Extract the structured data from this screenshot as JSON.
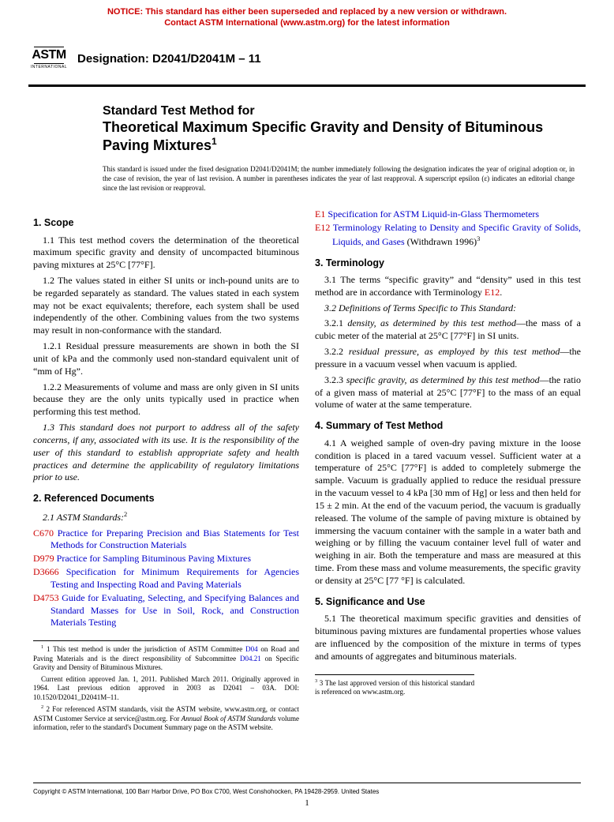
{
  "notice": {
    "line1": "NOTICE: This standard has either been superseded and replaced by a new version or withdrawn.",
    "line2": "Contact ASTM International (www.astm.org) for the latest information"
  },
  "logo": {
    "top": "",
    "main": "ASTM",
    "bottom": "INTERNATIONAL"
  },
  "designation": "Designation: D2041/D2041M – 11",
  "title": {
    "pre": "Standard Test Method for",
    "main": "Theoretical Maximum Specific Gravity and Density of Bituminous Paving Mixtures",
    "sup": "1"
  },
  "issued_note": "This standard is issued under the fixed designation D2041/D2041M; the number immediately following the designation indicates the year of original adoption or, in the case of revision, the year of last revision. A number in parentheses indicates the year of last reapproval. A superscript epsilon (ε) indicates an editorial change since the last revision or reapproval.",
  "s1": {
    "head": "1. Scope",
    "p1": "1.1 This test method covers the determination of the theoretical maximum specific gravity and density of uncompacted bituminous paving mixtures at 25°C [77°F].",
    "p2": "1.2 The values stated in either SI units or inch-pound units are to be regarded separately as standard. The values stated in each system may not be exact equivalents; therefore, each system shall be used independently of the other. Combining values from the two systems may result in non-conformance with the standard.",
    "p3": "1.2.1 Residual pressure measurements are shown in both the SI unit of kPa and the commonly used non-standard equivalent unit of “mm of Hg”.",
    "p4": "1.2.2 Measurements of volume and mass are only given in SI units because they are the only units typically used in practice when performing this test method.",
    "p5": "1.3 This standard does not purport to address all of the safety concerns, if any, associated with its use. It is the responsibility of the user of this standard to establish appropriate safety and health practices and determine the applicability of regulatory limitations prior to use."
  },
  "s2": {
    "head": "2. Referenced Documents",
    "sub": "2.1 ASTM Standards:",
    "sup": "2",
    "refs": [
      {
        "code": "C670",
        "text": "Practice for Preparing Precision and Bias Statements for Test Methods for Construction Materials"
      },
      {
        "code": "D979",
        "text": "Practice for Sampling Bituminous Paving Mixtures"
      },
      {
        "code": "D3666",
        "text": "Specification for Minimum Requirements for Agencies Testing and Inspecting Road and Paving Materials"
      },
      {
        "code": "D4753",
        "text": "Guide for Evaluating, Selecting, and Specifying Balances and Standard Masses for Use in Soil, Rock, and Construction Materials Testing"
      }
    ],
    "refs_r": [
      {
        "code": "E1",
        "text": "Specification for ASTM Liquid-in-Glass Thermometers",
        "tail": ""
      },
      {
        "code": "E12",
        "text": "Terminology Relating to Density and Specific Gravity of Solids, Liquids, and Gases",
        "tail": " (Withdrawn 1996)",
        "tailsup": "3"
      }
    ]
  },
  "s3": {
    "head": "3. Terminology",
    "p1a": "3.1 The terms “specific gravity” and “density” used in this test method are in accordance with Terminology ",
    "p1link": "E12",
    "p1b": ".",
    "p2": "3.2 Definitions of Terms Specific to This Standard:",
    "p3a": "3.2.1 ",
    "p3b": "density, as determined by this test method",
    "p3c": "—the mass of a cubic meter of the material at 25°C [77°F] in SI units.",
    "p4a": "3.2.2 ",
    "p4b": "residual pressure, as employed by this test method",
    "p4c": "—the pressure in a vacuum vessel when vacuum is applied.",
    "p5a": "3.2.3 ",
    "p5b": "specific gravity, as determined by this test method",
    "p5c": "—the ratio of a given mass of material at 25°C [77°F] to the mass of an equal volume of water at the same temperature."
  },
  "s4": {
    "head": "4. Summary of Test Method",
    "p1": "4.1 A weighed sample of oven-dry paving mixture in the loose condition is placed in a tared vacuum vessel. Sufficient water at a temperature of 25°C [77°F] is added to completely submerge the sample. Vacuum is gradually applied to reduce the residual pressure in the vacuum vessel to 4 kPa [30 mm of Hg] or less and then held for 15 ± 2 min. At the end of the vacuum period, the vacuum is gradually released. The volume of the sample of paving mixture is obtained by immersing the vacuum container with the sample in a water bath and weighing or by filling the vacuum container level full of water and weighing in air. Both the temperature and mass are measured at this time. From these mass and volume measurements, the specific gravity or density at 25°C [77 °F] is calculated."
  },
  "s5": {
    "head": "5. Significance and Use",
    "p1": "5.1 The theoretical maximum specific gravities and densities of bituminous paving mixtures are fundamental properties whose values are influenced by the composition of the mixture in terms of types and amounts of aggregates and bituminous materials."
  },
  "fn_left": {
    "f1a": "1 This test method is under the jurisdiction of ASTM Committee ",
    "f1l1": "D04",
    "f1b": " on Road and Paving Materials and is the direct responsibility of Subcommittee ",
    "f1l2": "D04.21",
    "f1c": " on Specific Gravity and Density of Bituminous Mixtures.",
    "f1d": "Current edition approved Jan. 1, 2011. Published March 2011. Originally approved in 1964. Last previous edition approved in 2003 as D2041 – 03A. DOI: 10.1520/D2041_D2041M–11.",
    "f2a": "2 For referenced ASTM standards, visit the ASTM website, www.astm.org, or contact ASTM Customer Service at service@astm.org. For ",
    "f2b": "Annual Book of ASTM Standards",
    "f2c": " volume information, refer to the standard's Document Summary page on the ASTM website."
  },
  "fn_right": {
    "f3": "3 The last approved version of this historical standard is referenced on www.astm.org."
  },
  "copyright": "Copyright © ASTM International, 100 Barr Harbor Drive, PO Box C700, West Conshohocken, PA 19428-2959. United States",
  "pagenum": "1"
}
